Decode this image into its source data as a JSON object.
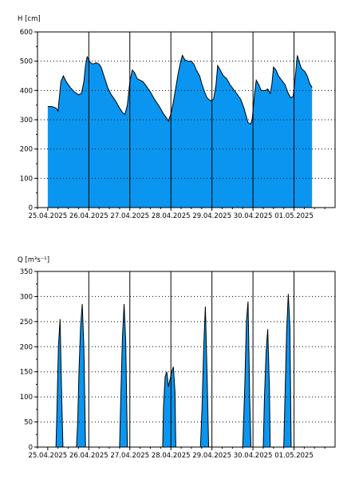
{
  "chart_data": [
    {
      "type": "area",
      "ylabel": "H [cm]",
      "ylim": [
        0,
        600
      ],
      "yticks": [
        0,
        100,
        200,
        300,
        400,
        500,
        600
      ],
      "xticks": [
        "25.04.2025",
        "26.04.2025",
        "27.04.2025",
        "28.04.2025",
        "29.04.2025",
        "30.04.2025",
        "01.05.2025"
      ],
      "xlim_days": [
        -0.25,
        7.0
      ],
      "fill_color": "#0a96f0",
      "grid": "dotted",
      "points": [
        [
          0.0,
          345
        ],
        [
          0.1,
          345
        ],
        [
          0.2,
          340
        ],
        [
          0.25,
          330
        ],
        [
          0.32,
          430
        ],
        [
          0.38,
          450
        ],
        [
          0.45,
          430
        ],
        [
          0.55,
          410
        ],
        [
          0.65,
          395
        ],
        [
          0.75,
          385
        ],
        [
          0.82,
          390
        ],
        [
          0.88,
          430
        ],
        [
          0.92,
          485
        ],
        [
          0.96,
          515
        ],
        [
          1.0,
          505
        ],
        [
          1.04,
          495
        ],
        [
          1.1,
          490
        ],
        [
          1.18,
          495
        ],
        [
          1.25,
          490
        ],
        [
          1.3,
          480
        ],
        [
          1.38,
          445
        ],
        [
          1.46,
          410
        ],
        [
          1.55,
          385
        ],
        [
          1.65,
          365
        ],
        [
          1.75,
          340
        ],
        [
          1.82,
          325
        ],
        [
          1.88,
          318
        ],
        [
          1.94,
          350
        ],
        [
          2.0,
          430
        ],
        [
          2.06,
          470
        ],
        [
          2.12,
          460
        ],
        [
          2.18,
          440
        ],
        [
          2.25,
          435
        ],
        [
          2.32,
          430
        ],
        [
          2.4,
          415
        ],
        [
          2.5,
          395
        ],
        [
          2.6,
          370
        ],
        [
          2.72,
          345
        ],
        [
          2.82,
          320
        ],
        [
          2.9,
          305
        ],
        [
          2.94,
          295
        ],
        [
          3.0,
          320
        ],
        [
          3.06,
          360
        ],
        [
          3.12,
          410
        ],
        [
          3.18,
          460
        ],
        [
          3.24,
          500
        ],
        [
          3.28,
          520
        ],
        [
          3.34,
          505
        ],
        [
          3.42,
          500
        ],
        [
          3.5,
          500
        ],
        [
          3.56,
          490
        ],
        [
          3.62,
          470
        ],
        [
          3.7,
          450
        ],
        [
          3.76,
          420
        ],
        [
          3.82,
          395
        ],
        [
          3.88,
          375
        ],
        [
          3.96,
          365
        ],
        [
          4.04,
          370
        ],
        [
          4.1,
          420
        ],
        [
          4.14,
          485
        ],
        [
          4.2,
          470
        ],
        [
          4.28,
          450
        ],
        [
          4.36,
          440
        ],
        [
          4.44,
          420
        ],
        [
          4.52,
          405
        ],
        [
          4.6,
          390
        ],
        [
          4.7,
          370
        ],
        [
          4.78,
          340
        ],
        [
          4.84,
          310
        ],
        [
          4.88,
          290
        ],
        [
          4.94,
          285
        ],
        [
          4.98,
          300
        ],
        [
          5.04,
          390
        ],
        [
          5.08,
          435
        ],
        [
          5.14,
          420
        ],
        [
          5.2,
          400
        ],
        [
          5.3,
          400
        ],
        [
          5.36,
          405
        ],
        [
          5.42,
          390
        ],
        [
          5.46,
          420
        ],
        [
          5.5,
          480
        ],
        [
          5.56,
          470
        ],
        [
          5.62,
          450
        ],
        [
          5.7,
          435
        ],
        [
          5.78,
          420
        ],
        [
          5.86,
          390
        ],
        [
          5.92,
          375
        ],
        [
          5.98,
          380
        ],
        [
          6.04,
          460
        ],
        [
          6.08,
          520
        ],
        [
          6.12,
          500
        ],
        [
          6.18,
          475
        ],
        [
          6.26,
          465
        ],
        [
          6.32,
          450
        ],
        [
          6.38,
          425
        ],
        [
          6.42,
          415
        ],
        [
          6.44,
          410
        ]
      ]
    },
    {
      "type": "area",
      "ylabel": "Q [m³s⁻¹]",
      "ylim": [
        0,
        350
      ],
      "yticks": [
        0,
        50,
        100,
        150,
        200,
        250,
        300,
        350
      ],
      "xticks": [
        "25.04.2025",
        "26.04.2025",
        "27.04.2025",
        "28.04.2025",
        "29.04.2025",
        "30.04.2025",
        "01.05.2025"
      ],
      "xlim_days": [
        -0.25,
        7.0
      ],
      "fill_color": "#0a96f0",
      "grid": "dotted",
      "points": [
        [
          0.0,
          0
        ],
        [
          0.2,
          0
        ],
        [
          0.22,
          60
        ],
        [
          0.26,
          200
        ],
        [
          0.3,
          255
        ],
        [
          0.34,
          100
        ],
        [
          0.37,
          0
        ],
        [
          0.7,
          0
        ],
        [
          0.73,
          50
        ],
        [
          0.76,
          150
        ],
        [
          0.8,
          240
        ],
        [
          0.84,
          285
        ],
        [
          0.88,
          200
        ],
        [
          0.92,
          0
        ],
        [
          1.75,
          0
        ],
        [
          1.78,
          100
        ],
        [
          1.82,
          220
        ],
        [
          1.86,
          285
        ],
        [
          1.9,
          210
        ],
        [
          1.94,
          0
        ],
        [
          2.8,
          0
        ],
        [
          2.82,
          80
        ],
        [
          2.86,
          140
        ],
        [
          2.9,
          150
        ],
        [
          2.94,
          120
        ],
        [
          2.98,
          135
        ],
        [
          3.02,
          150
        ],
        [
          3.06,
          160
        ],
        [
          3.1,
          110
        ],
        [
          3.12,
          0
        ],
        [
          3.72,
          0
        ],
        [
          3.76,
          80
        ],
        [
          3.8,
          200
        ],
        [
          3.84,
          280
        ],
        [
          3.88,
          150
        ],
        [
          3.92,
          0
        ],
        [
          4.75,
          0
        ],
        [
          4.8,
          120
        ],
        [
          4.84,
          250
        ],
        [
          4.88,
          290
        ],
        [
          4.92,
          100
        ],
        [
          4.95,
          0
        ],
        [
          5.25,
          0
        ],
        [
          5.28,
          100
        ],
        [
          5.32,
          190
        ],
        [
          5.36,
          235
        ],
        [
          5.4,
          120
        ],
        [
          5.42,
          0
        ],
        [
          5.75,
          0
        ],
        [
          5.78,
          100
        ],
        [
          5.82,
          230
        ],
        [
          5.86,
          305
        ],
        [
          5.9,
          240
        ],
        [
          5.93,
          0
        ],
        [
          6.44,
          0
        ]
      ]
    }
  ]
}
